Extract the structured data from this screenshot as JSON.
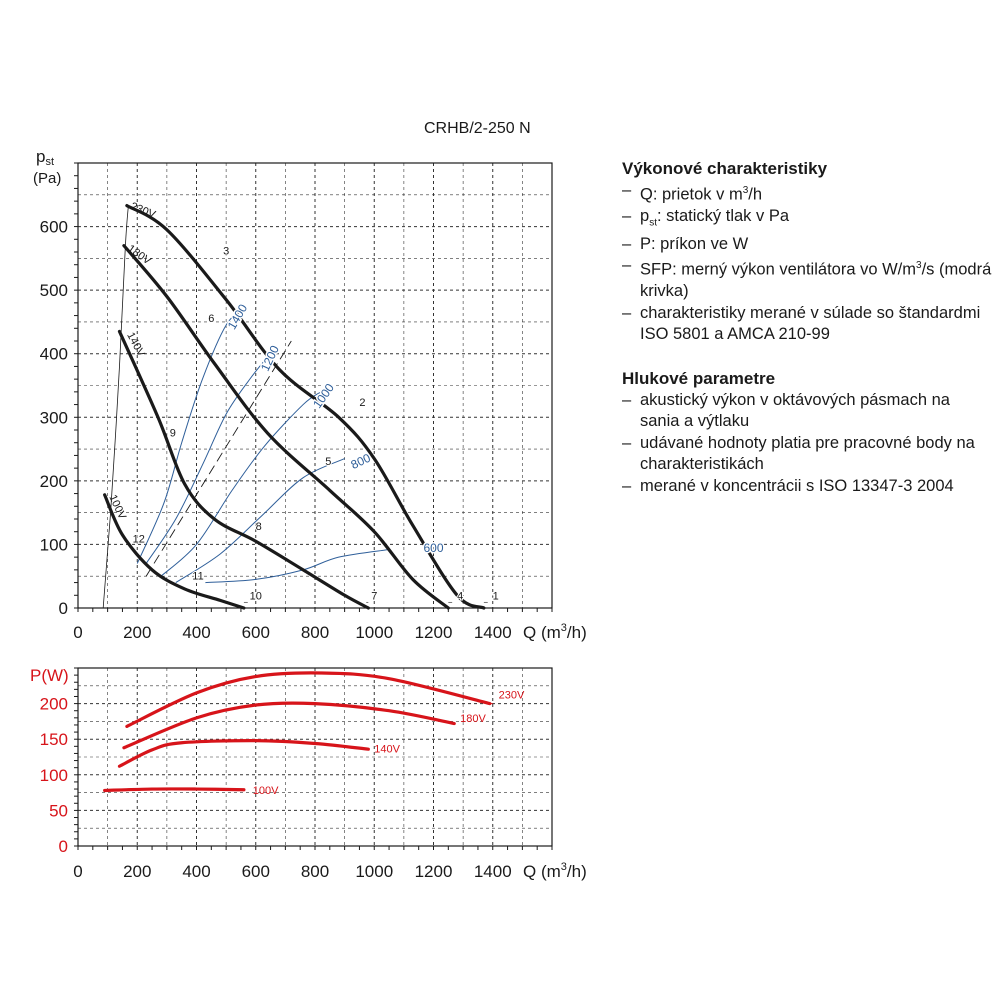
{
  "title": "CRHB/2-250 N",
  "info": {
    "performance_heading": "Výkonové charakteristiky",
    "performance_items": [
      [
        "– Q: prietok v m",
        "3",
        "/h"
      ],
      [
        "– p",
        "st",
        ": statický tlak v Pa"
      ],
      [
        "– P: príkon ve W"
      ],
      [
        "– SFP: merný výkon ventilátora vo W/m",
        "3",
        "/s (modrá krivka)"
      ],
      [
        "– charakteristiky merané v súlade so štan­dardmi ISO 5801 a AMCA 210-99"
      ]
    ],
    "noise_heading": "Hlukové parametre",
    "noise_items": [
      "akustický výkon v oktávových pásmach na sania a výtlaku",
      "udávané hodnoty platia pre pracovné body na charakteristikách",
      "merané v koncentrácii s ISO 13347-3 2004"
    ]
  },
  "colors": {
    "curve": "#1a1a1a",
    "sfp": "#2f5f9a",
    "power": "#d7141a",
    "grid": "#222222",
    "label_red": "#d7141a"
  },
  "chart_data": [
    {
      "type": "line",
      "title": "CRHB/2-250 N",
      "ylabel": [
        "p",
        "st",
        "(Pa)"
      ],
      "xlabel": [
        "Q (m",
        "3",
        "/h)"
      ],
      "xlim": [
        0,
        1600
      ],
      "ylim": [
        0,
        700
      ],
      "xticks": [
        0,
        200,
        400,
        600,
        800,
        1000,
        1200,
        1400
      ],
      "yticks": [
        0,
        100,
        200,
        300,
        400,
        500,
        600
      ],
      "grid": true,
      "fan_curves": [
        {
          "name": "230V",
          "points": [
            [
              165,
              633
            ],
            [
              300,
              595
            ],
            [
              500,
              485
            ],
            [
              680,
              375
            ],
            [
              880,
              300
            ],
            [
              1000,
              235
            ],
            [
              1130,
              130
            ],
            [
              1280,
              20
            ],
            [
              1370,
              0
            ]
          ]
        },
        {
          "name": "180V",
          "points": [
            [
              155,
              570
            ],
            [
              300,
              490
            ],
            [
              460,
              385
            ],
            [
              640,
              275
            ],
            [
              850,
              185
            ],
            [
              1000,
              120
            ],
            [
              1130,
              45
            ],
            [
              1250,
              0
            ]
          ]
        },
        {
          "name": "140V",
          "points": [
            [
              140,
              435
            ],
            [
              270,
              300
            ],
            [
              360,
              195
            ],
            [
              460,
              140
            ],
            [
              600,
              105
            ],
            [
              760,
              60
            ],
            [
              900,
              20
            ],
            [
              980,
              0
            ]
          ]
        },
        {
          "name": "100V",
          "points": [
            [
              90,
              178
            ],
            [
              150,
              115
            ],
            [
              250,
              60
            ],
            [
              360,
              30
            ],
            [
              480,
              12
            ],
            [
              560,
              0
            ]
          ]
        }
      ],
      "curve_labels": [
        {
          "text": "230V",
          "x": 175,
          "y": 628
        },
        {
          "text": "180V",
          "x": 165,
          "y": 563
        },
        {
          "text": "140V",
          "x": 165,
          "y": 430
        },
        {
          "text": "100V",
          "x": 105,
          "y": 175
        }
      ],
      "operating_points": [
        {
          "label": "1",
          "x": 1410,
          "y": 13
        },
        {
          "label": "2",
          "x": 960,
          "y": 318
        },
        {
          "label": "3",
          "x": 500,
          "y": 556
        },
        {
          "label": "4",
          "x": 1290,
          "y": 13
        },
        {
          "label": "5",
          "x": 845,
          "y": 225
        },
        {
          "label": "6",
          "x": 450,
          "y": 450
        },
        {
          "label": "7",
          "x": 1000,
          "y": 13
        },
        {
          "label": "8",
          "x": 610,
          "y": 123
        },
        {
          "label": "9",
          "x": 320,
          "y": 270
        },
        {
          "label": "10",
          "x": 600,
          "y": 13
        },
        {
          "label": "11",
          "x": 405,
          "y": 45
        },
        {
          "label": "12",
          "x": 205,
          "y": 103
        }
      ],
      "sfp_curves": [
        {
          "name": "600",
          "points": [
            [
              430,
              40
            ],
            [
              600,
              45
            ],
            [
              760,
              60
            ],
            [
              880,
              80
            ],
            [
              1050,
              92
            ]
          ]
        },
        {
          "name": "800",
          "points": [
            [
              330,
              40
            ],
            [
              480,
              85
            ],
            [
              620,
              145
            ],
            [
              760,
              205
            ],
            [
              900,
              235
            ]
          ]
        },
        {
          "name": "1000",
          "points": [
            [
              280,
              50
            ],
            [
              400,
              100
            ],
            [
              520,
              185
            ],
            [
              630,
              255
            ],
            [
              760,
              320
            ],
            [
              820,
              340
            ]
          ]
        },
        {
          "name": "1200",
          "points": [
            [
              230,
              70
            ],
            [
              330,
              140
            ],
            [
              420,
              225
            ],
            [
              500,
              305
            ],
            [
              580,
              360
            ],
            [
              640,
              395
            ]
          ]
        },
        {
          "name": "1400",
          "points": [
            [
              200,
              70
            ],
            [
              290,
              165
            ],
            [
              350,
              260
            ],
            [
              420,
              360
            ],
            [
              500,
              445
            ],
            [
              560,
              470
            ]
          ]
        }
      ],
      "sfp_label_offsets": {
        "600": 1100,
        "800": 940,
        "1000": 840,
        "1200": 660,
        "1400": 580
      }
    },
    {
      "type": "line",
      "ylabel": "P(W)",
      "xlabel": [
        "Q (m",
        "3",
        "/h)"
      ],
      "xlim": [
        0,
        1600
      ],
      "ylim": [
        0,
        250
      ],
      "xticks": [
        0,
        200,
        400,
        600,
        800,
        1000,
        1200,
        1400
      ],
      "yticks": [
        0,
        50,
        100,
        150,
        200
      ],
      "grid": true,
      "series": [
        {
          "name": "230V",
          "points": [
            [
              165,
              168
            ],
            [
              400,
              215
            ],
            [
              600,
              238
            ],
            [
              820,
              243
            ],
            [
              1050,
              235
            ],
            [
              1390,
              200
            ]
          ]
        },
        {
          "name": "180V",
          "points": [
            [
              155,
              138
            ],
            [
              400,
              180
            ],
            [
              600,
              198
            ],
            [
              800,
              200
            ],
            [
              1050,
              190
            ],
            [
              1270,
              172
            ]
          ]
        },
        {
          "name": "140V",
          "points": [
            [
              140,
              112
            ],
            [
              250,
              135
            ],
            [
              350,
              145
            ],
            [
              600,
              148
            ],
            [
              800,
              144
            ],
            [
              980,
              136
            ]
          ]
        },
        {
          "name": "100V",
          "points": [
            [
              90,
              78
            ],
            [
              250,
              80
            ],
            [
              400,
              80
            ],
            [
              560,
              79
            ]
          ]
        }
      ]
    }
  ]
}
